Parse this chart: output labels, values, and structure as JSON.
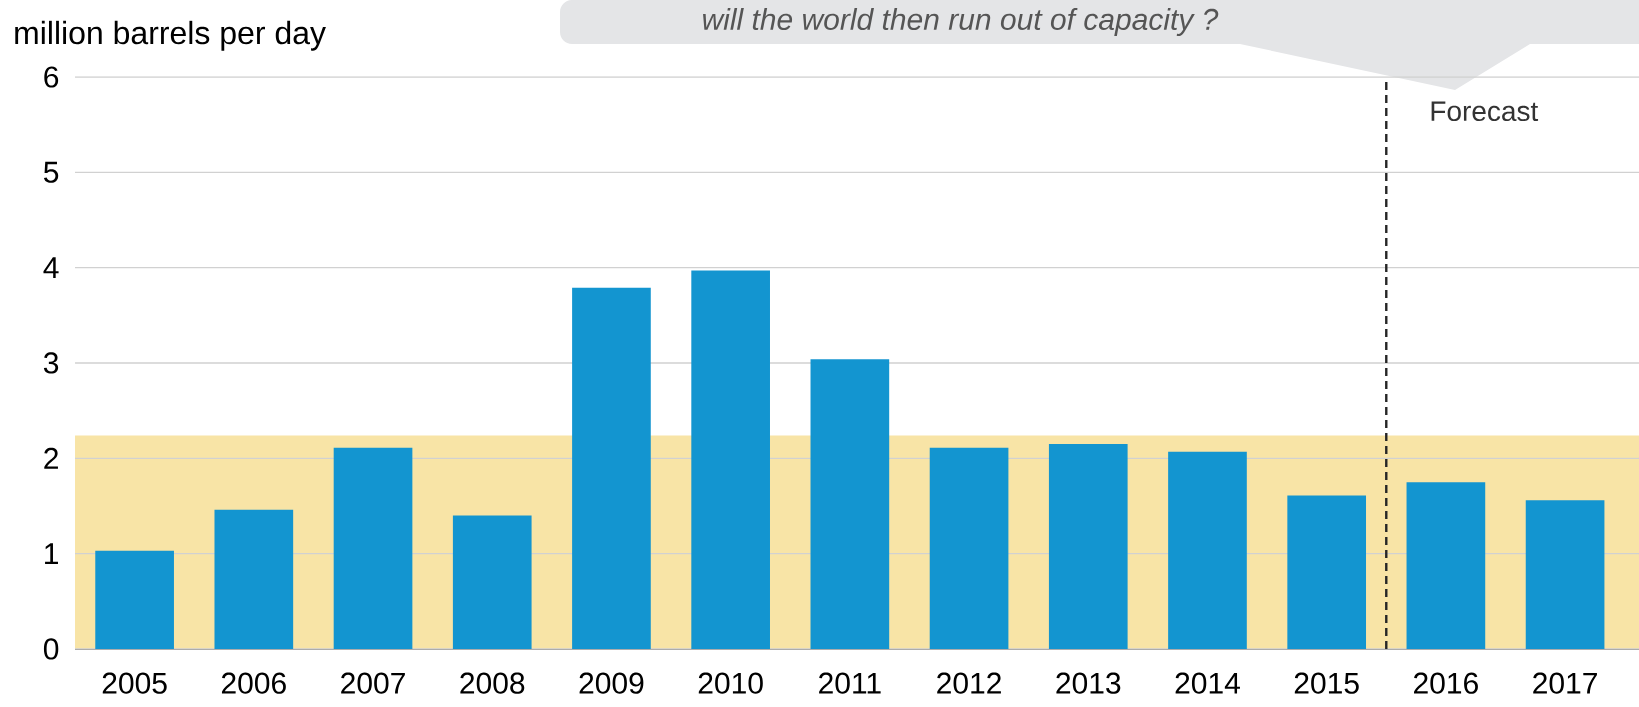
{
  "chart_data": {
    "type": "bar",
    "ylabel": "million barrels per day",
    "x": [
      2005,
      2006,
      2007,
      2008,
      2009,
      2010,
      2011,
      2012,
      2013,
      2014,
      2015,
      2016,
      2017
    ],
    "values": [
      1.03,
      1.46,
      2.11,
      1.4,
      3.79,
      3.97,
      3.04,
      2.11,
      2.15,
      2.07,
      1.61,
      1.75,
      1.56
    ],
    "color": "#1395d0",
    "xlim": [
      2004.5,
      2017.62
    ],
    "xticks": [
      2005,
      2006,
      2007,
      2008,
      2009,
      2010,
      2011,
      2012,
      2013,
      2014,
      2015,
      2016,
      2017
    ],
    "ylim": [
      0,
      6
    ],
    "yticks": [
      0,
      1,
      2,
      3,
      4,
      5,
      6
    ],
    "grid": "y",
    "bands": [
      {
        "axis": "y",
        "from": 0,
        "to": 2.24,
        "color": "#f8e4a6"
      }
    ],
    "ref_lines": [
      {
        "axis": "x",
        "value": 2015.5,
        "label": "Forecast",
        "line_style": "dashed"
      }
    ],
    "annotations": [
      "will the world then run out of capacity ?"
    ]
  }
}
